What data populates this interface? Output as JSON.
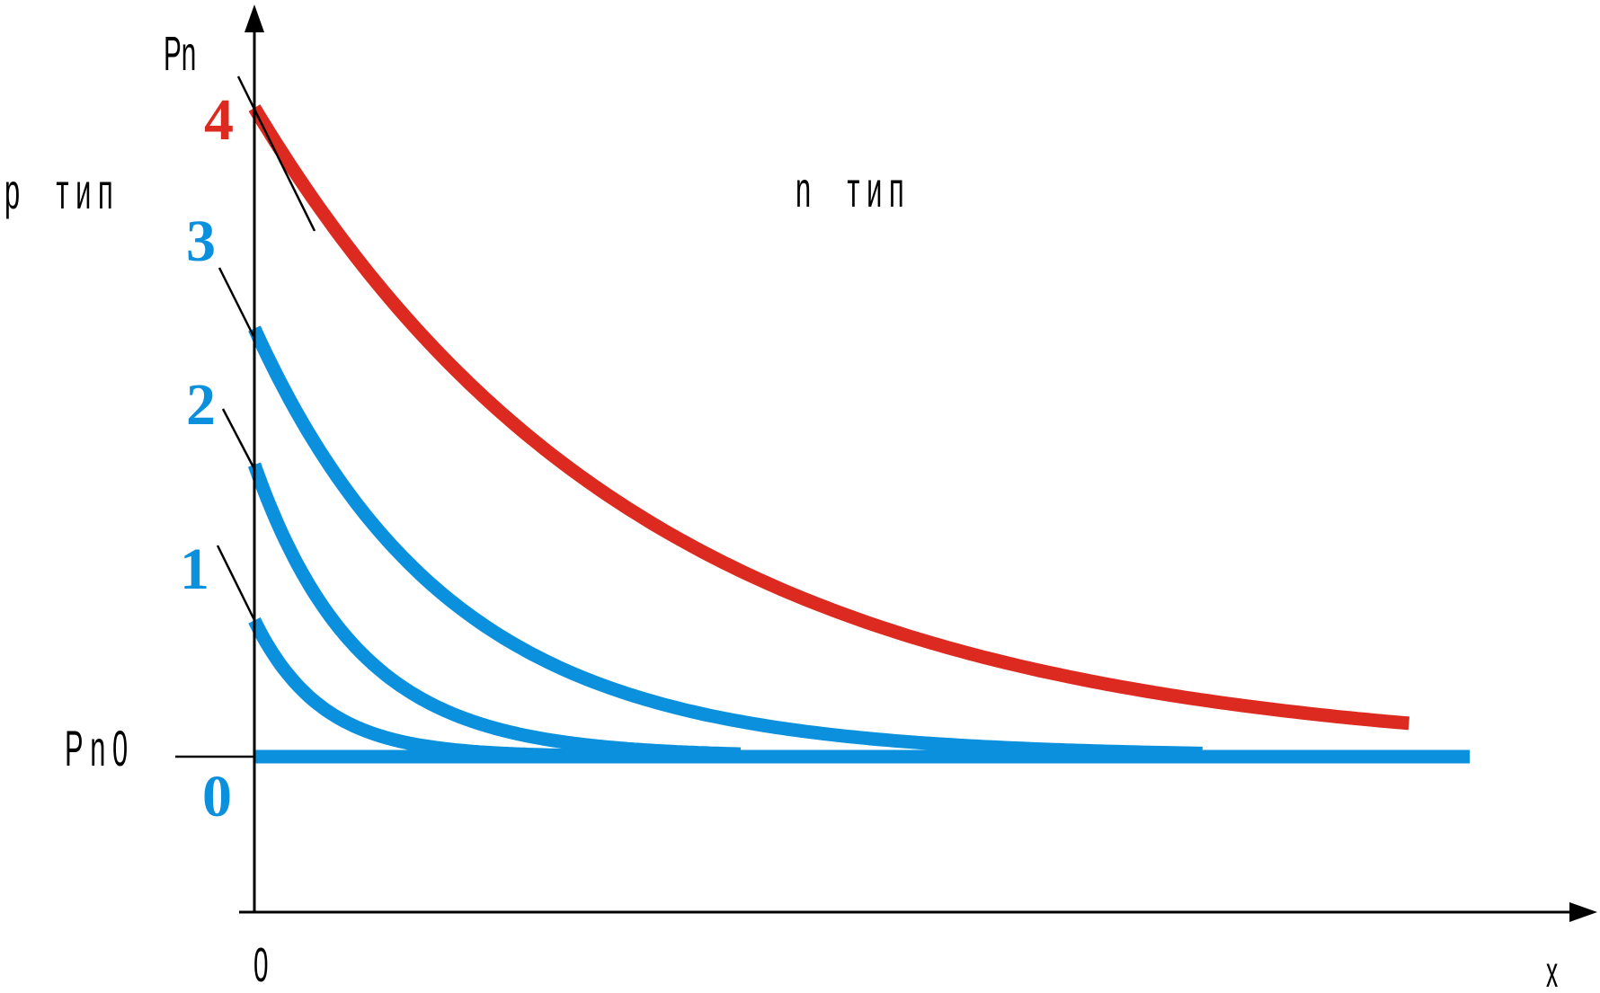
{
  "chart_data": {
    "type": "line",
    "title": "",
    "xlabel": "x",
    "ylabel": "Pn",
    "x_tick_labels": [
      "0"
    ],
    "baseline_label": "Pn0",
    "region_labels": [
      "p  тип",
      "n  тип"
    ],
    "x_range": [
      0,
      1
    ],
    "y_range": [
      0,
      1
    ],
    "colors": {
      "blue": "#0a90dc",
      "red": "#dc2a20",
      "axis": "#000000"
    },
    "series": [
      {
        "name": "0",
        "color": "blue",
        "x0": 0.0,
        "x_end": 1.0,
        "y0": 0.0,
        "decay": 1.0
      },
      {
        "name": "1",
        "color": "blue",
        "x0": 0.0,
        "x_end": 0.4,
        "y0": 0.21,
        "decay": 0.055
      },
      {
        "name": "2",
        "color": "blue",
        "x0": 0.0,
        "x_end": 0.4,
        "y0": 0.45,
        "decay": 0.085
      },
      {
        "name": "3",
        "color": "blue",
        "x0": 0.0,
        "x_end": 0.78,
        "y0": 0.66,
        "decay": 0.16
      },
      {
        "name": "4",
        "color": "red",
        "x0": 0.0,
        "x_end": 0.95,
        "y0": 1.0,
        "decay": 0.32
      }
    ]
  }
}
